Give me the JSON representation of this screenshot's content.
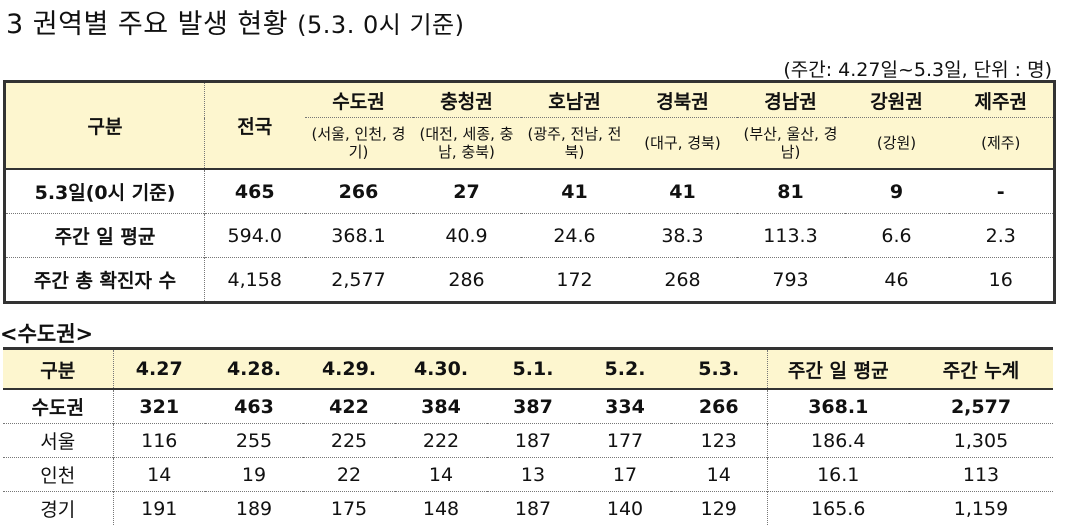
{
  "title": {
    "main": "3  권역별 주요 발생 현황",
    "note": "(5.3. 0시 기준)"
  },
  "unit_note": "(주간: 4.27일~5.3일, 단위 : 명)",
  "table1": {
    "header_label": "구분",
    "nation_label": "전국",
    "regions": [
      {
        "name": "수도권",
        "sub": "(서울, 인천, 경기)"
      },
      {
        "name": "충청권",
        "sub": "(대전, 세종, 충남, 충북)"
      },
      {
        "name": "호남권",
        "sub": "(광주, 전남, 전북)"
      },
      {
        "name": "경북권",
        "sub": "(대구, 경북)"
      },
      {
        "name": "경남권",
        "sub": "(부산, 울산, 경남)"
      },
      {
        "name": "강원권",
        "sub": "(강원)"
      },
      {
        "name": "제주권",
        "sub": "(제주)"
      }
    ],
    "rows": [
      {
        "label": "5.3일(0시 기준)",
        "values": [
          "465",
          "266",
          "27",
          "41",
          "41",
          "81",
          "9",
          "-"
        ]
      },
      {
        "label": "주간 일 평균",
        "values": [
          "594.0",
          "368.1",
          "40.9",
          "24.6",
          "38.3",
          "113.3",
          "6.6",
          "2.3"
        ]
      },
      {
        "label": "주간 총 확진자 수",
        "values": [
          "4,158",
          "2,577",
          "286",
          "172",
          "268",
          "793",
          "46",
          "16"
        ]
      }
    ]
  },
  "section_label": "<수도권>",
  "table2": {
    "headers": [
      "구분",
      "4.27",
      "4.28.",
      "4.29.",
      "4.30.",
      "5.1.",
      "5.2.",
      "5.3.",
      "주간 일 평균",
      "주간 누계"
    ],
    "rows": [
      {
        "label": "수도권",
        "values": [
          "321",
          "463",
          "422",
          "384",
          "387",
          "334",
          "266",
          "368.1",
          "2,577"
        ]
      },
      {
        "label": "서울",
        "values": [
          "116",
          "255",
          "225",
          "222",
          "187",
          "177",
          "123",
          "186.4",
          "1,305"
        ]
      },
      {
        "label": "인천",
        "values": [
          "14",
          "19",
          "22",
          "14",
          "13",
          "17",
          "14",
          "16.1",
          "113"
        ]
      },
      {
        "label": "경기",
        "values": [
          "191",
          "189",
          "175",
          "148",
          "187",
          "140",
          "129",
          "165.6",
          "1,159"
        ]
      }
    ]
  }
}
